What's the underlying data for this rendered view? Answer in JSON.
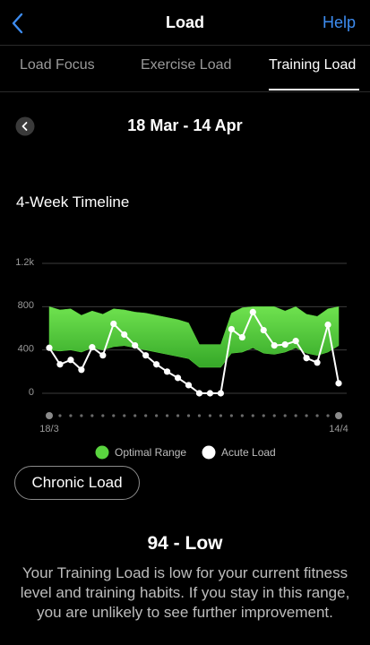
{
  "header": {
    "title": "Load",
    "help": "Help"
  },
  "tabs": [
    "Load Focus",
    "Exercise Load",
    "Training Load"
  ],
  "date_range": "18 Mar - 14 Apr",
  "chart_data": {
    "type": "line",
    "title": "4-Week Timeline",
    "categories": [
      "18/3",
      null,
      null,
      null,
      null,
      null,
      null,
      null,
      null,
      null,
      null,
      null,
      null,
      null,
      null,
      null,
      null,
      null,
      null,
      null,
      null,
      null,
      null,
      null,
      null,
      null,
      null,
      "14/4"
    ],
    "ylim": [
      0,
      1200
    ],
    "yticks": [
      0,
      400,
      800,
      {
        "value": 1200,
        "label": "1.2k"
      }
    ],
    "grid": true,
    "series": [
      {
        "name": "Optimal Range",
        "color": "#5ad43f",
        "high": [
          800,
          770,
          780,
          720,
          760,
          730,
          780,
          770,
          750,
          740,
          720,
          700,
          680,
          650,
          450,
          450,
          450,
          740,
          790,
          800,
          800,
          800,
          760,
          800,
          730,
          710,
          780,
          800
        ],
        "low": [
          400,
          390,
          400,
          380,
          420,
          400,
          430,
          440,
          420,
          400,
          380,
          360,
          340,
          320,
          240,
          240,
          240,
          370,
          380,
          420,
          370,
          360,
          380,
          420,
          370,
          350,
          380,
          440
        ]
      },
      {
        "name": "Acute Load",
        "color": "#ffffff",
        "values": [
          420,
          267,
          308,
          217,
          425,
          350,
          642,
          542,
          442,
          350,
          267,
          200,
          142,
          75,
          0,
          0,
          0,
          592,
          517,
          750,
          583,
          442,
          450,
          483,
          325,
          283,
          633,
          92
        ]
      }
    ]
  },
  "chronic_button": "Chronic Load",
  "summary": {
    "score": "94 - Low",
    "text": "Your Training Load is low for your current fitness level and training habits. If you stay in this range, you are unlikely to see further improvement."
  }
}
